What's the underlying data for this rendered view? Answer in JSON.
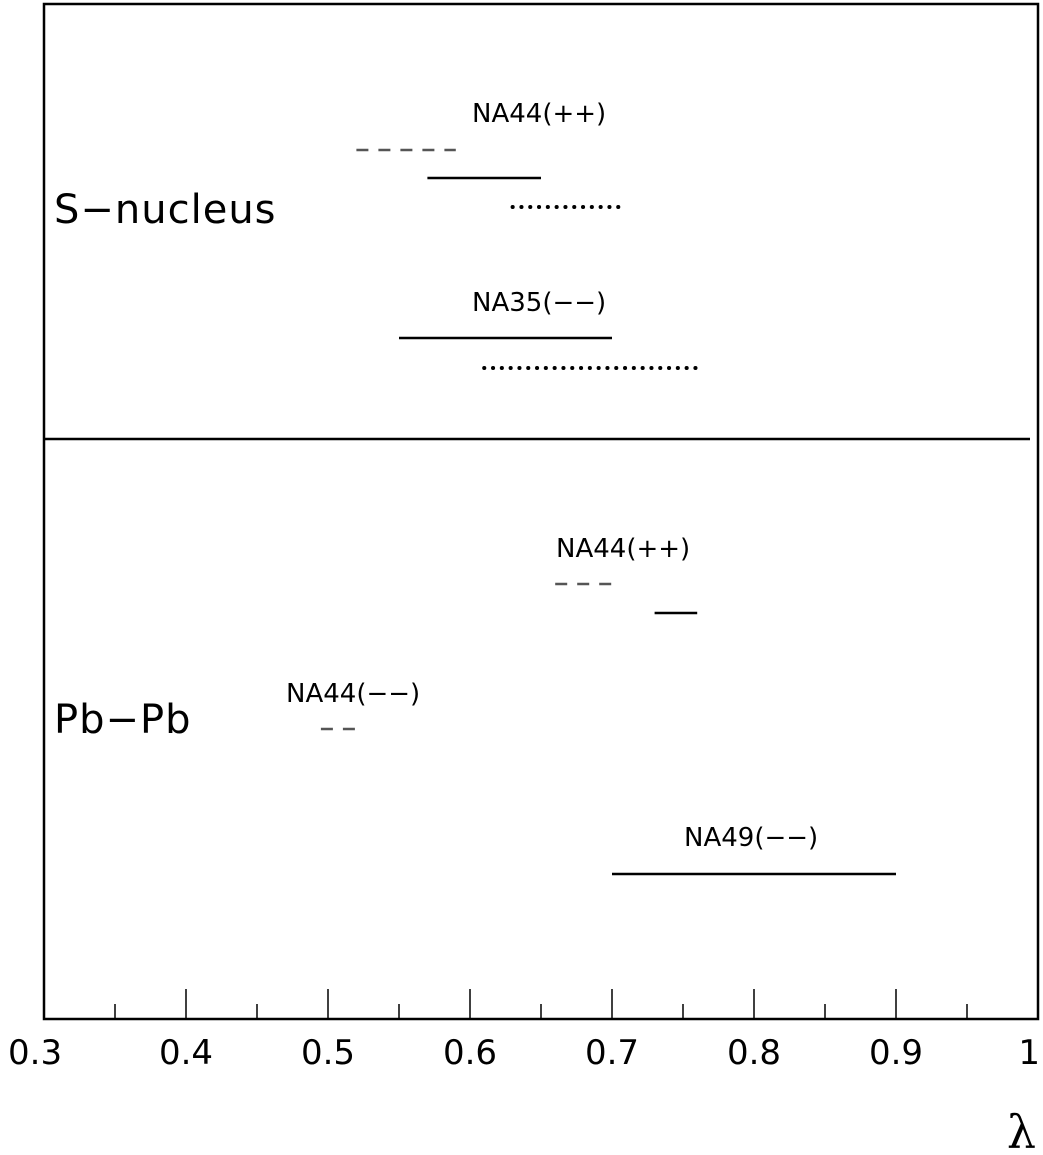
{
  "chart_data": {
    "type": "range-interval",
    "xlabel": "λ",
    "xlim": [
      0.3,
      1.0
    ],
    "x_ticks": [
      "0.3",
      "0.4",
      "0.5",
      "0.6",
      "0.7",
      "0.8",
      "0.9",
      "1"
    ],
    "x_minor_step": 0.05,
    "panels": [
      {
        "label": "S−nucleus",
        "groups": [
          {
            "label": "NA44(++)",
            "ranges": [
              {
                "style": "dashed",
                "x": [
                  0.52,
                  0.59
                ]
              },
              {
                "style": "solid",
                "x": [
                  0.57,
                  0.65
                ]
              },
              {
                "style": "dotted",
                "x": [
                  0.63,
                  0.71
                ]
              }
            ]
          },
          {
            "label": "NA35(−−)",
            "ranges": [
              {
                "style": "solid",
                "x": [
                  0.55,
                  0.7
                ]
              },
              {
                "style": "dotted",
                "x": [
                  0.61,
                  0.76
                ]
              }
            ]
          }
        ]
      },
      {
        "label": "Pb−Pb",
        "groups": [
          {
            "label": "NA44(++)",
            "ranges": [
              {
                "style": "dashed",
                "x": [
                  0.66,
                  0.7
                ]
              },
              {
                "style": "solid",
                "x": [
                  0.73,
                  0.76
                ]
              }
            ]
          },
          {
            "label": "NA44(−−)",
            "ranges": [
              {
                "style": "dashed",
                "x": [
                  0.495,
                  0.525
                ]
              }
            ]
          },
          {
            "label": "NA49(−−)",
            "ranges": [
              {
                "style": "solid",
                "x": [
                  0.7,
                  0.9
                ]
              }
            ]
          }
        ]
      }
    ]
  }
}
